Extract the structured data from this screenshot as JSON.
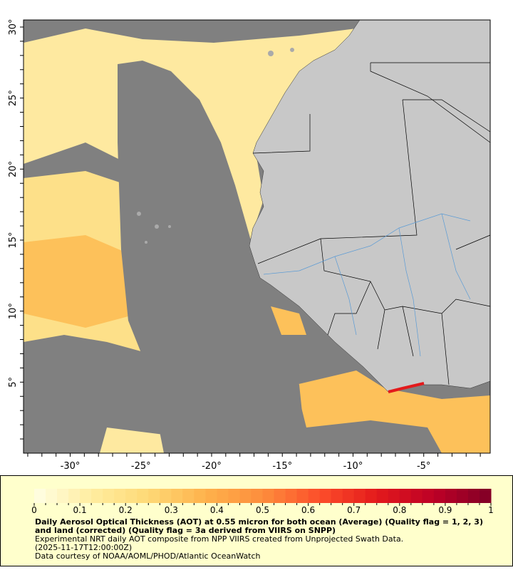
{
  "map": {
    "lat_ticks": [
      "30°",
      "25°",
      "20°",
      "15°",
      "10°",
      "5°"
    ],
    "lat_values": [
      30,
      25,
      20,
      15,
      10,
      5
    ],
    "lon_ticks": [
      "-30°",
      "-25°",
      "-20°",
      "-15°",
      "-10°",
      "-5°"
    ],
    "lon_values": [
      -30,
      -25,
      -20,
      -15,
      -10,
      -5
    ],
    "lon_range": [
      -33.3,
      -0.3
    ],
    "lat_range": [
      0,
      30.5
    ],
    "colors": {
      "no_data": "#808080",
      "land": "#c8c8c8",
      "rivers": "#5b9bd5",
      "borders": "#000000"
    }
  },
  "colorbar": {
    "min": 0,
    "max": 1,
    "tick_labels": [
      "0",
      "0.1",
      "0.2",
      "0.3",
      "0.4",
      "0.5",
      "0.6",
      "0.7",
      "0.8",
      "0.9",
      "1"
    ],
    "colors": [
      "#ffffe5",
      "#ffeda0",
      "#fed976",
      "#feb24c",
      "#fd8d3c",
      "#fc4e2a",
      "#e31a1c",
      "#bd0026",
      "#800026"
    ]
  },
  "legend": {
    "title": "Daily Aerosol Optical Thickness (AOT) at 0.55 micron for both ocean (Average) (Quality flag = 1, 2, 3) and land (corrected) (Quality flag = 3a derived from VIIRS on SNPP)",
    "line1": "Experimental NRT daily AOT composite from NPP VIIRS created from Unprojected Swath Data.",
    "line2": "(2025-11-17T12:00:00Z)",
    "line3": "Data courtesy of NOAA/AOML/PHOD/Atlantic OceanWatch"
  }
}
